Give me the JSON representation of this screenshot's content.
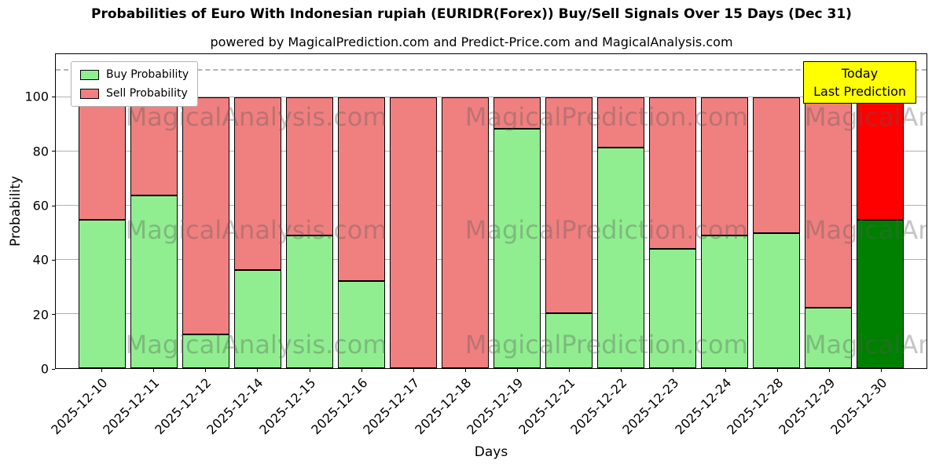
{
  "chart": {
    "title": "Probabilities of Euro With Indonesian rupiah (EURIDR(Forex)) Buy/Sell Signals Over 15 Days (Dec 31)",
    "subtitle": "powered by MagicalPrediction.com and Predict-Price.com and MagicalAnalysis.com",
    "xlabel": "Days",
    "ylabel": "Probability",
    "legend": [
      {
        "label": "Buy Probability",
        "color": "#90ee90"
      },
      {
        "label": "Sell Probability",
        "color": "#f08080"
      }
    ],
    "annotation": {
      "line1": "Today",
      "line2": "Last Prediction",
      "bg": "#ffff00"
    },
    "watermarks": [
      "MagicalAnalysis.com",
      "MagicalPrediction.com"
    ]
  },
  "chart_data": {
    "type": "bar",
    "stacked": true,
    "categories": [
      "2025-12-10",
      "2025-12-11",
      "2025-12-12",
      "2025-12-14",
      "2025-12-15",
      "2025-12-16",
      "2025-12-17",
      "2025-12-18",
      "2025-12-19",
      "2025-12-21",
      "2025-12-22",
      "2025-12-23",
      "2025-12-24",
      "2025-12-28",
      "2025-12-29",
      "2025-12-30"
    ],
    "series": [
      {
        "name": "Buy Probability",
        "color": "#90ee90",
        "last_color": "#008000",
        "values": [
          55,
          64,
          12,
          36,
          49,
          32,
          0,
          0,
          89,
          20,
          82,
          44,
          49,
          50,
          22,
          55
        ]
      },
      {
        "name": "Sell Probability",
        "color": "#f08080",
        "last_color": "#ff0000",
        "values": [
          45,
          36,
          88,
          64,
          51,
          68,
          100,
          100,
          11,
          80,
          18,
          56,
          51,
          50,
          78,
          45
        ]
      }
    ],
    "yticks": [
      0,
      20,
      40,
      60,
      80,
      100
    ],
    "ylim": [
      0,
      116
    ],
    "dashed_line_y": 110,
    "grid": true,
    "legend_position": "upper-left"
  }
}
